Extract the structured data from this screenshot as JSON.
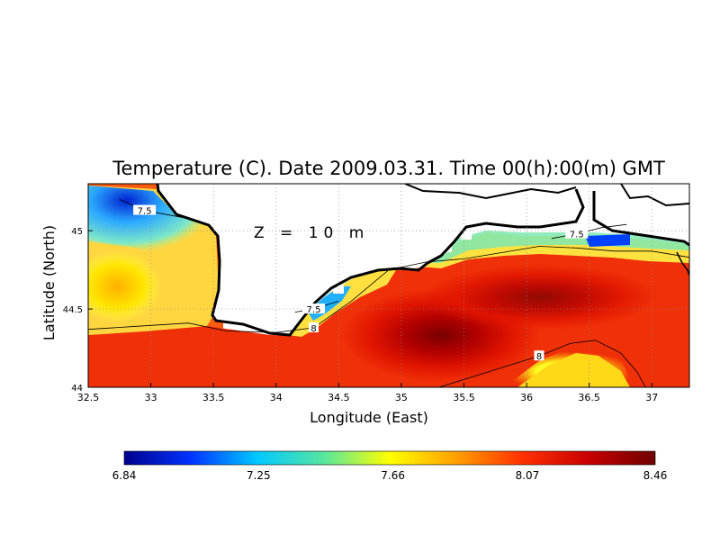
{
  "chart_data": {
    "type": "heatmap",
    "title": "Temperature (C). Date 2009.03.31. Time 00(h):00(m) GMT",
    "annotation": "Z = 10 m",
    "xlabel": "Longitude (East)",
    "ylabel": "Latitude (North)",
    "xlim": [
      32.5,
      37.3
    ],
    "ylim": [
      44.0,
      45.3
    ],
    "x_ticks": [
      "32.5",
      "33",
      "33.5",
      "34",
      "34.5",
      "35",
      "35.5",
      "36",
      "36.5",
      "37"
    ],
    "y_ticks": [
      "44",
      "44.5",
      "45"
    ],
    "grid": "dotted",
    "colorbar": {
      "ticks": [
        "6.84",
        "7.25",
        "7.66",
        "8.07",
        "8.46"
      ],
      "min": 6.84,
      "max": 8.46,
      "colors": [
        "#00008c",
        "#0033ff",
        "#00c8ff",
        "#55e6a0",
        "#ffff00",
        "#ffa000",
        "#ff3000",
        "#c80000",
        "#6e0000"
      ]
    },
    "contours": [
      {
        "level": "7.5",
        "points": [
          [
            32.75,
            45.2
          ],
          [
            32.95,
            45.13
          ],
          [
            33.15,
            45.1
          ],
          [
            33.35,
            45.07
          ],
          [
            33.45,
            45.04
          ]
        ]
      },
      {
        "level": "7.5",
        "points": [
          [
            34.15,
            44.48
          ],
          [
            34.3,
            44.5
          ],
          [
            34.5,
            44.55
          ]
        ]
      },
      {
        "level": "7.5",
        "points": [
          [
            36.2,
            44.95
          ],
          [
            36.4,
            44.98
          ],
          [
            36.6,
            45.02
          ],
          [
            36.8,
            45.04
          ]
        ]
      },
      {
        "level": "8",
        "points": [
          [
            32.5,
            44.37
          ],
          [
            32.9,
            44.39
          ],
          [
            33.3,
            44.41
          ],
          [
            33.6,
            44.36
          ],
          [
            34.0,
            44.35
          ],
          [
            34.3,
            44.38
          ],
          [
            34.6,
            44.55
          ],
          [
            34.9,
            44.75
          ],
          [
            35.2,
            44.8
          ],
          [
            35.5,
            44.82
          ],
          [
            35.8,
            44.86
          ],
          [
            36.1,
            44.9
          ],
          [
            36.4,
            44.89
          ],
          [
            36.7,
            44.87
          ],
          [
            37.0,
            44.87
          ],
          [
            37.3,
            44.83
          ]
        ]
      },
      {
        "level": "8",
        "points": [
          [
            35.3,
            44.0
          ],
          [
            35.7,
            44.1
          ],
          [
            36.1,
            44.2
          ],
          [
            36.35,
            44.28
          ],
          [
            36.55,
            44.3
          ],
          [
            36.75,
            44.22
          ],
          [
            36.88,
            44.1
          ],
          [
            36.95,
            44.0
          ]
        ]
      }
    ]
  }
}
